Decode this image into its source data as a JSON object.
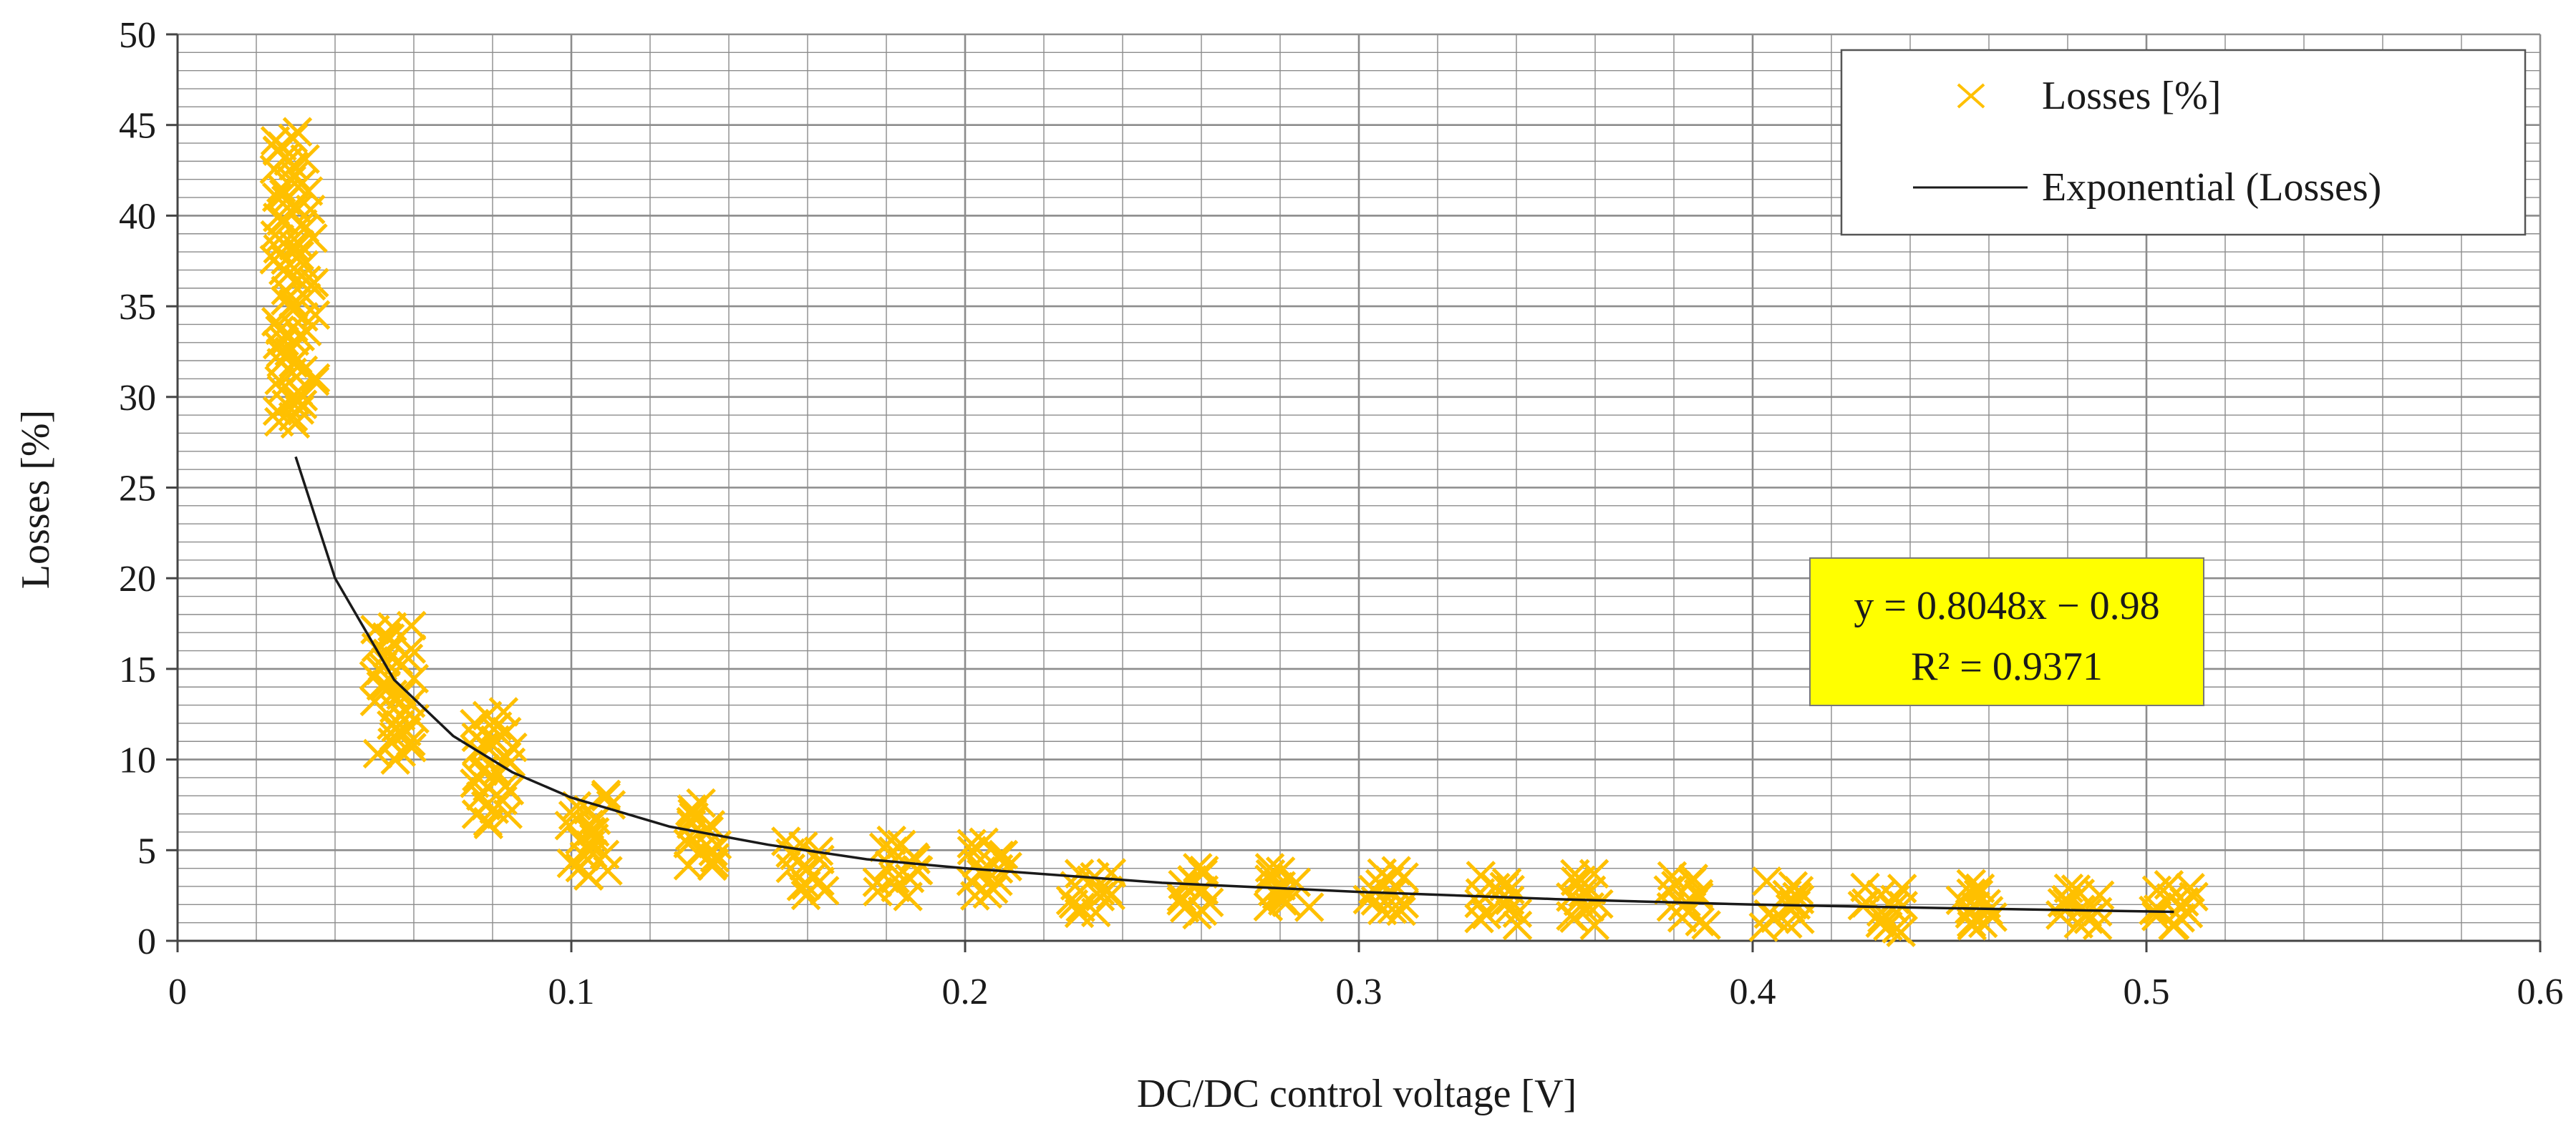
{
  "chart_data": {
    "type": "scatter",
    "title": "",
    "xlabel": "DC/DC control voltage [V]",
    "ylabel": "Losses [%]",
    "xlim": [
      0,
      0.6
    ],
    "ylim": [
      0,
      50
    ],
    "x_ticks": [
      "0",
      "0.1",
      "0.2",
      "0.3",
      "0.4",
      "0.5",
      "0.6"
    ],
    "y_ticks": [
      "0",
      "5",
      "10",
      "15",
      "20",
      "25",
      "30",
      "35",
      "40",
      "45",
      "50"
    ],
    "grid": true,
    "legend_position": "top-right",
    "colors": {
      "marker": "#FFC000",
      "trendline": "#1a1a1a",
      "equation_box": "#FFFF00",
      "grid": "#8c8c8c"
    },
    "series": [
      {
        "name": "Losses [%]",
        "marker": "x",
        "clusters": [
          {
            "x": 0.03,
            "y_min": 28.5,
            "y_max": 44.5
          },
          {
            "x": 0.055,
            "y_min": 10.0,
            "y_max": 17.5
          },
          {
            "x": 0.08,
            "y_min": 6.5,
            "y_max": 12.5
          },
          {
            "x": 0.105,
            "y_min": 3.5,
            "y_max": 8.0
          },
          {
            "x": 0.135,
            "y_min": 4.0,
            "y_max": 7.5
          },
          {
            "x": 0.16,
            "y_min": 2.5,
            "y_max": 5.5
          },
          {
            "x": 0.183,
            "y_min": 2.5,
            "y_max": 5.5
          },
          {
            "x": 0.207,
            "y_min": 2.5,
            "y_max": 5.5
          },
          {
            "x": 0.232,
            "y_min": 1.5,
            "y_max": 3.8
          },
          {
            "x": 0.257,
            "y_min": 1.5,
            "y_max": 4.0
          },
          {
            "x": 0.282,
            "y_min": 1.8,
            "y_max": 4.0
          },
          {
            "x": 0.307,
            "y_min": 1.5,
            "y_max": 3.8
          },
          {
            "x": 0.335,
            "y_min": 1.0,
            "y_max": 3.5
          },
          {
            "x": 0.358,
            "y_min": 1.0,
            "y_max": 3.8
          },
          {
            "x": 0.383,
            "y_min": 1.0,
            "y_max": 3.5
          },
          {
            "x": 0.408,
            "y_min": 0.8,
            "y_max": 3.2
          },
          {
            "x": 0.433,
            "y_min": 0.5,
            "y_max": 3.0
          },
          {
            "x": 0.458,
            "y_min": 0.8,
            "y_max": 3.0
          },
          {
            "x": 0.483,
            "y_min": 0.8,
            "y_max": 3.0
          },
          {
            "x": 0.507,
            "y_min": 0.8,
            "y_max": 3.0
          }
        ]
      },
      {
        "name": "Exponential (Losses)",
        "type": "line",
        "x": [
          0.03,
          0.04,
          0.055,
          0.07,
          0.085,
          0.1,
          0.125,
          0.15,
          0.175,
          0.2,
          0.25,
          0.3,
          0.35,
          0.4,
          0.45,
          0.507
        ],
        "y": [
          26.7,
          20.0,
          14.4,
          11.3,
          9.3,
          7.9,
          6.3,
          5.3,
          4.5,
          4.0,
          3.2,
          2.7,
          2.3,
          2.0,
          1.8,
          1.6
        ]
      }
    ],
    "annotations": [
      {
        "line1": "y = 0.8048x − 0.98",
        "line2": "R² = 0.9371"
      }
    ]
  }
}
